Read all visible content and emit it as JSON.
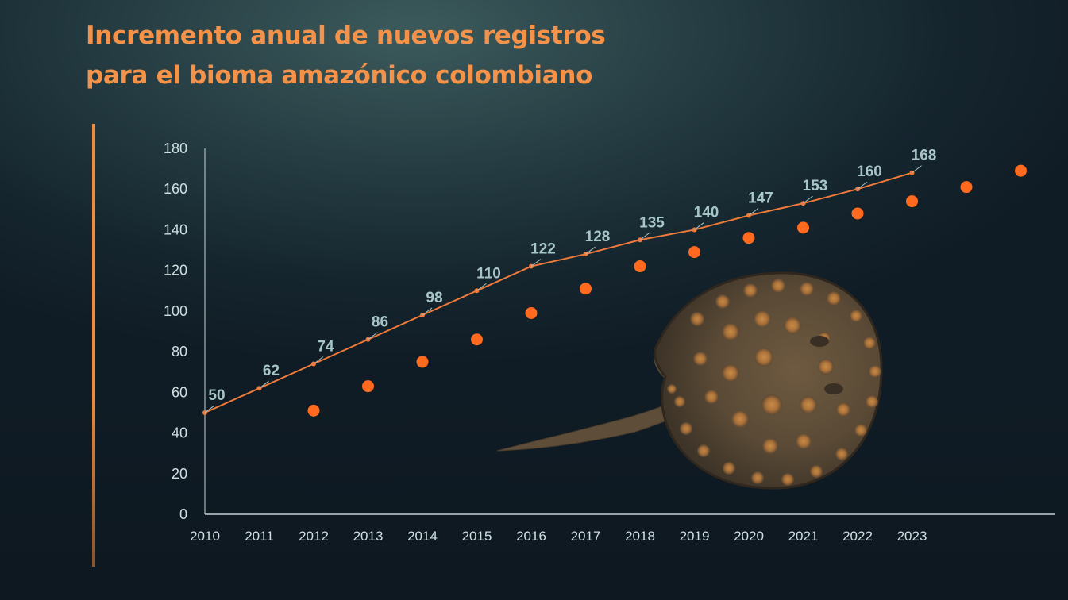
{
  "title": {
    "line1": "Incremento anual de nuevos registros",
    "line2": "para el bioma amazónico colombiano"
  },
  "image": {
    "name": "stingray-photo"
  },
  "colors": {
    "title": "#f5924a",
    "accent": "#f08a3c",
    "line": "#f07a3a",
    "dots": "#ff6a1e",
    "axis_text": "#cfe0e2",
    "data_labels": "#a7c6c7",
    "axis_line": "#c9d3d4"
  },
  "chart_data": {
    "type": "line",
    "title": "Incremento anual de nuevos registros para el bioma amazónico colombiano",
    "xlabel": "",
    "ylabel": "",
    "categories": [
      "2010",
      "2011",
      "2012",
      "2013",
      "2014",
      "2015",
      "2016",
      "2017",
      "2018",
      "2019",
      "2020",
      "2021",
      "2022",
      "2023"
    ],
    "ylim": [
      0,
      180
    ],
    "yticks": [
      0,
      20,
      40,
      60,
      80,
      100,
      120,
      140,
      160,
      180
    ],
    "grid": false,
    "legend": "none",
    "series": [
      {
        "style": "line",
        "values": [
          50,
          62,
          74,
          86,
          98,
          110,
          122,
          128,
          135,
          140,
          147,
          153,
          160,
          168
        ],
        "data_labels": [
          "50",
          "62",
          "74",
          "86",
          "98",
          "110",
          "122",
          "128",
          "135",
          "140",
          "147",
          "153",
          "160",
          "168"
        ]
      },
      {
        "style": "dots",
        "x_index": [
          2,
          3,
          4,
          5,
          6,
          7,
          8,
          9,
          10,
          11,
          12,
          13,
          14,
          15
        ],
        "values": [
          51,
          63,
          75,
          86,
          99,
          111,
          122,
          129,
          136,
          141,
          148,
          154,
          161,
          169
        ]
      }
    ]
  }
}
